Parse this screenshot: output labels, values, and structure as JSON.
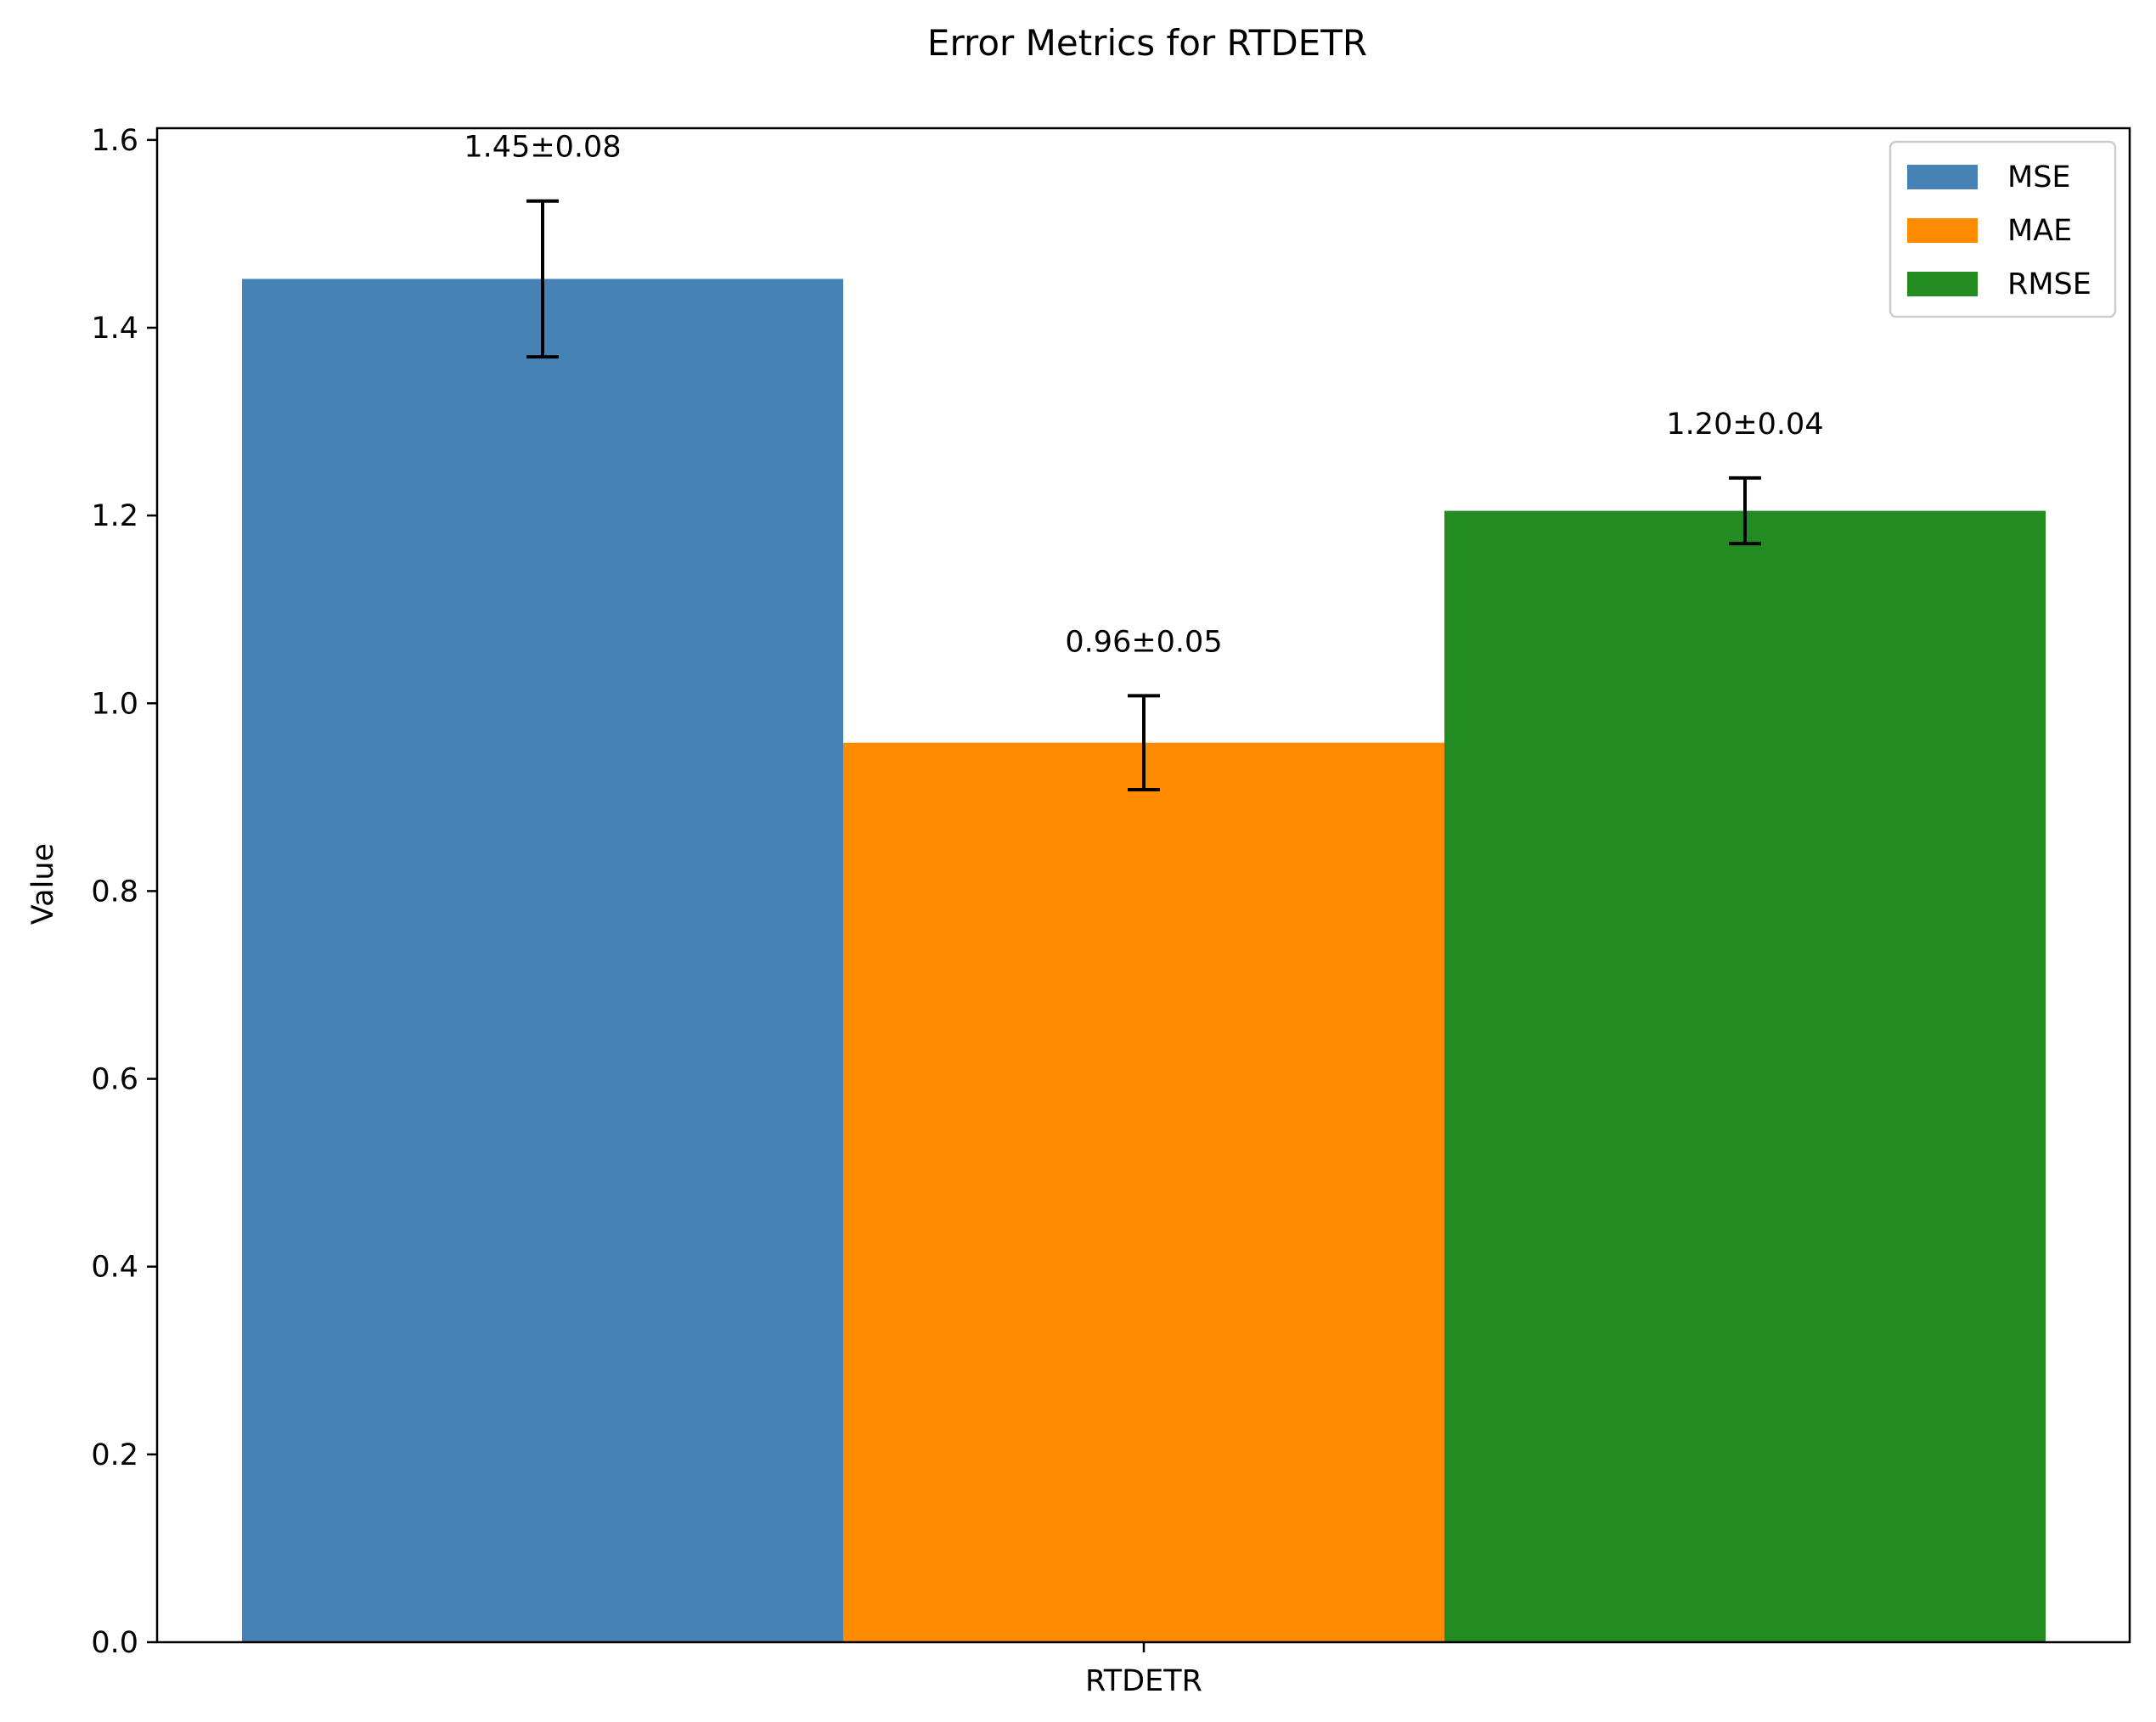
{
  "chart_data": {
    "type": "bar",
    "title": "Error Metrics for RTDETR",
    "xlabel": "",
    "ylabel": "Value",
    "categories": [
      "RTDETR"
    ],
    "series": [
      {
        "name": "MSE",
        "values": [
          1.452
        ],
        "errors": [
          0.083
        ],
        "label": "1.45±0.08",
        "color": "#4682b4"
      },
      {
        "name": "MAE",
        "values": [
          0.958
        ],
        "errors": [
          0.05
        ],
        "label": "0.96±0.05",
        "color": "#ff8c00"
      },
      {
        "name": "RMSE",
        "values": [
          1.205
        ],
        "errors": [
          0.035
        ],
        "label": "1.20±0.04",
        "color": "#228b22"
      }
    ],
    "ylim": [
      0,
      1.6125
    ],
    "yticks": [
      "0.0",
      "0.2",
      "0.4",
      "0.6",
      "0.8",
      "1.0",
      "1.2",
      "1.4",
      "1.6"
    ],
    "grid": false,
    "legend_position": "top-right"
  }
}
